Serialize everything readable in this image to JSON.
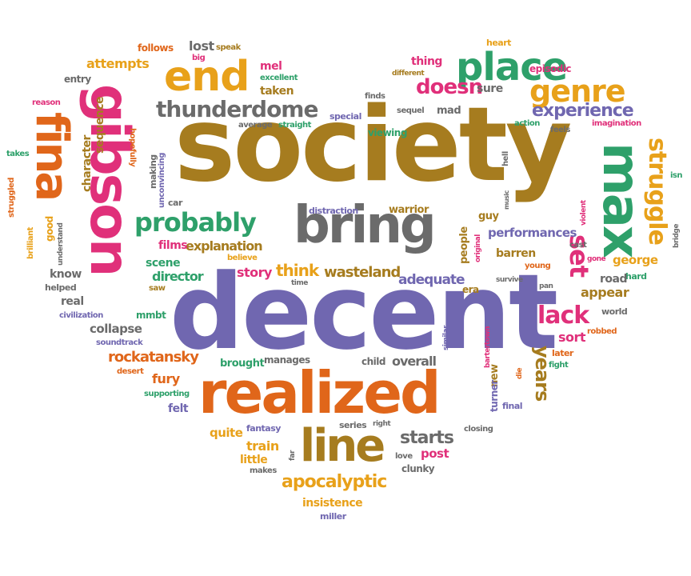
{
  "colors": {
    "brown": "#a67c1f",
    "purple": "#7067b0",
    "orange": "#e0661a",
    "pink": "#e0307a",
    "green": "#2ea06a",
    "gold": "#e8a11a",
    "gray": "#6b6b6b",
    "olive": "#96801c"
  },
  "words": {
    "society": "society",
    "decent": "decent",
    "realized": "realized",
    "bring": "bring",
    "gibson": "gibson",
    "fina": "fina",
    "max": "max",
    "place": "place",
    "end": "end",
    "line": "line",
    "probably": "probably",
    "genre": "genre",
    "thunderdome": "thunderdome",
    "struggle": "struggle",
    "experience": "experience",
    "apocalyptic": "apocalyptic",
    "lack": "lack",
    "set": "set",
    "doesn": "doesn",
    "wasteland": "wasteland",
    "think": "think",
    "story": "story",
    "rockatansky": "rockatansky",
    "starts": "starts",
    "adequate": "adequate",
    "performances": "performances",
    "george": "george",
    "years": "years",
    "explanation": "explanation",
    "director": "director",
    "scene": "scene",
    "films": "films",
    "character": "character",
    "sequence": "sequence",
    "attempts": "attempts",
    "lost": "lost",
    "speak": "speak",
    "follows": "follows",
    "big": "big",
    "mel": "mel",
    "excellent": "excellent",
    "taken": "taken",
    "entry": "entry",
    "reason": "reason",
    "hopefully": "hopefully",
    "average": "average",
    "straight": "straight",
    "special": "special",
    "thing": "thing",
    "different": "different",
    "heart": "heart",
    "episodic": "episodic",
    "sure": "sure",
    "finds": "finds",
    "sequel": "sequel",
    "mad": "mad",
    "action": "action",
    "feels": "feels",
    "imagination": "imagination",
    "viewing": "viewing",
    "hell": "hell",
    "isn": "isn",
    "bridge": "bridge",
    "violent": "violent",
    "takes": "takes",
    "struggled": "struggled",
    "brilliant": "brilliant",
    "good": "good",
    "understand": "understand",
    "know": "know",
    "helped": "helped",
    "real": "real",
    "civilization": "civilization",
    "mmbt": "mmbt",
    "collapse": "collapse",
    "soundtrack": "soundtrack",
    "making": "making",
    "car": "car",
    "unconvincing": "unconvincing",
    "believe": "believe",
    "saw": "saw",
    "time": "time",
    "distraction": "distraction",
    "warrior": "warrior",
    "guy": "guy",
    "people": "people",
    "original": "original",
    "music": "music",
    "barren": "barren",
    "young": "young",
    "survive": "survive",
    "pan": "pan",
    "cast": "cast",
    "gone": "gone",
    "hard": "hard",
    "road": "road",
    "era": "era",
    "appear": "appear",
    "world": "world",
    "robbed": "robbed",
    "sort": "sort",
    "later": "later",
    "fight": "fight",
    "die": "die",
    "bartertown": "bartertown",
    "similar": "similar",
    "new": "new",
    "turner": "turner",
    "final": "final",
    "child": "child",
    "overall": "overall",
    "brought": "brought",
    "manages": "manages",
    "desert": "desert",
    "fury": "fury",
    "supporting": "supporting",
    "felt": "felt",
    "quite": "quite",
    "fantasy": "fantasy",
    "series": "series",
    "right": "right",
    "closing": "closing",
    "train": "train",
    "little": "little",
    "far": "far",
    "makes": "makes",
    "love": "love",
    "post": "post",
    "clunky": "clunky",
    "insistence": "insistence",
    "miller": "miller"
  }
}
